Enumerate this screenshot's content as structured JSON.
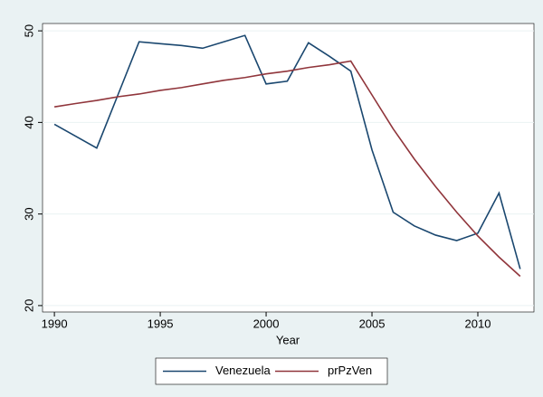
{
  "chart_data": {
    "type": "line",
    "x_label": "Year",
    "x": [
      1990,
      1991,
      1992,
      1993,
      1994,
      1995,
      1996,
      1997,
      1998,
      1999,
      2000,
      2001,
      2002,
      2003,
      2004,
      2005,
      2006,
      2007,
      2008,
      2009,
      2010,
      2011,
      2012
    ],
    "series": [
      {
        "name": "Venezuela",
        "color": "#1a476f",
        "values": [
          39.8,
          38.5,
          37.2,
          43,
          48.8,
          48.6,
          48.4,
          48.1,
          48.8,
          49.5,
          44.2,
          44.5,
          48.7,
          47.2,
          45.6,
          37,
          30.2,
          28.7,
          27.7,
          27.1,
          27.9,
          32.3,
          24
        ]
      },
      {
        "name": "prPzVen",
        "color": "#90353b",
        "values": [
          41.7,
          42.06,
          42.4,
          42.8,
          43.1,
          43.5,
          43.8,
          44.2,
          44.6,
          44.9,
          45.3,
          45.6,
          46,
          46.3,
          46.7,
          43,
          39.3,
          36,
          33,
          30.2,
          27.6,
          25.3,
          23.2
        ]
      }
    ],
    "xlim": [
      1989.44,
      2012.65
    ],
    "ylim": [
      19.3,
      50.8
    ],
    "xticks": [
      1990,
      1995,
      2000,
      2005,
      2010
    ],
    "yticks": [
      20,
      30,
      40,
      50
    ],
    "grid": true,
    "legend": "bottom"
  }
}
